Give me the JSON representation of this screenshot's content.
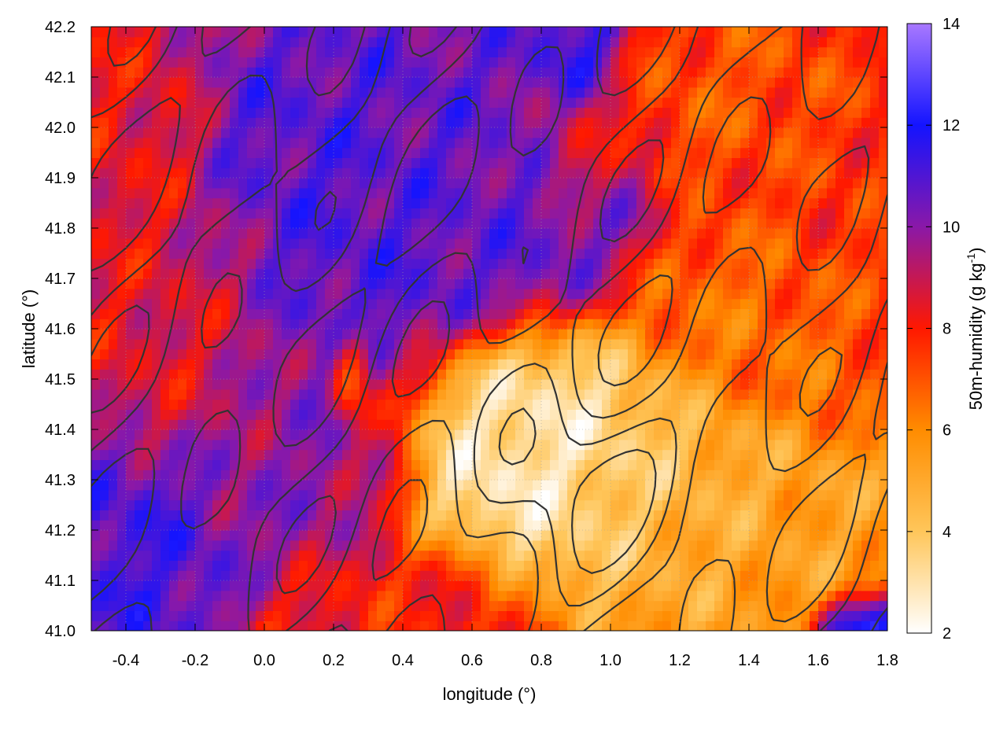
{
  "chart_data": {
    "type": "heatmap",
    "xlabel": "longitude (°)",
    "ylabel": "latitude (°)",
    "colorbar_label_main": "50m-humidity (g kg",
    "colorbar_label_sup": "-1",
    "colorbar_label_end": ")",
    "xlim": [
      -0.5,
      1.8
    ],
    "ylim": [
      41.0,
      42.2
    ],
    "clim": [
      2,
      14
    ],
    "x_ticks": [
      -0.4,
      -0.2,
      0.0,
      0.2,
      0.4,
      0.6,
      0.8,
      1.0,
      1.2,
      1.4,
      1.6,
      1.8
    ],
    "x_tick_labels": [
      "-0.4",
      "-0.2",
      "0.0",
      "0.2",
      "0.4",
      "0.6",
      "0.8",
      "1.0",
      "1.2",
      "1.4",
      "1.6",
      "1.8"
    ],
    "y_ticks": [
      41.0,
      41.1,
      41.2,
      41.3,
      41.4,
      41.5,
      41.6,
      41.7,
      41.8,
      41.9,
      42.0,
      42.1,
      42.2
    ],
    "y_tick_labels": [
      "41.0",
      "41.1",
      "41.2",
      "41.3",
      "41.4",
      "41.5",
      "41.6",
      "41.7",
      "41.8",
      "41.9",
      "42.0",
      "42.1",
      "42.2"
    ],
    "cbar_ticks": [
      2,
      4,
      6,
      8,
      10,
      12,
      14
    ],
    "cbar_tick_labels": [
      "2",
      "4",
      "6",
      "8",
      "10",
      "12",
      "14"
    ],
    "colormap": [
      [
        2,
        "#ffffff"
      ],
      [
        4,
        "#ffc65a"
      ],
      [
        6,
        "#ff8c00"
      ],
      [
        8,
        "#ff1800"
      ],
      [
        10,
        "#8a18a8"
      ],
      [
        12,
        "#1414ff"
      ],
      [
        14,
        "#a878ff"
      ]
    ],
    "grid": true,
    "contour_color": "#333333",
    "features": [
      {
        "lon": 0.85,
        "lat": 41.32,
        "value": 2.4,
        "sx": 0.3,
        "sy": 0.16
      },
      {
        "lon": 0.72,
        "lat": 41.42,
        "value": 3.0,
        "sx": 0.22,
        "sy": 0.13
      },
      {
        "lon": 1.1,
        "lat": 41.28,
        "value": 4.5,
        "sx": 0.25,
        "sy": 0.16
      },
      {
        "lon": 1.35,
        "lat": 41.2,
        "value": 5.0,
        "sx": 0.35,
        "sy": 0.14
      },
      {
        "lon": 1.55,
        "lat": 41.15,
        "value": 5.5,
        "sx": 0.3,
        "sy": 0.12
      },
      {
        "lon": 1.4,
        "lat": 41.6,
        "value": 6.5,
        "sx": 0.25,
        "sy": 0.15
      },
      {
        "lon": 1.65,
        "lat": 41.85,
        "value": 7.5,
        "sx": 0.2,
        "sy": 0.18
      },
      {
        "lon": 1.3,
        "lat": 42.05,
        "value": 7.0,
        "sx": 0.25,
        "sy": 0.12
      },
      {
        "lon": 0.25,
        "lat": 41.5,
        "value": 5.5,
        "sx": 0.04,
        "sy": 0.08
      },
      {
        "lon": 0.45,
        "lat": 41.05,
        "value": 8.0,
        "sx": 0.25,
        "sy": 0.1
      },
      {
        "lon": -0.3,
        "lat": 41.6,
        "value": 8.5,
        "sx": 0.25,
        "sy": 0.2
      },
      {
        "lon": -0.4,
        "lat": 41.95,
        "value": 8.3,
        "sx": 0.15,
        "sy": 0.15
      },
      {
        "lon": 0.3,
        "lat": 41.8,
        "value": 11.0,
        "sx": 0.35,
        "sy": 0.25
      },
      {
        "lon": 0.65,
        "lat": 41.9,
        "value": 10.5,
        "sx": 0.3,
        "sy": 0.2
      },
      {
        "lon": 0.9,
        "lat": 42.15,
        "value": 11.5,
        "sx": 0.1,
        "sy": 0.08
      },
      {
        "lon": 0.9,
        "lat": 41.95,
        "value": 8.0,
        "sx": 0.1,
        "sy": 0.08
      },
      {
        "lon": -0.4,
        "lat": 41.2,
        "value": 11.2,
        "sx": 0.2,
        "sy": 0.15
      },
      {
        "lon": 0.1,
        "lat": 41.35,
        "value": 10.0,
        "sx": 0.25,
        "sy": 0.15
      },
      {
        "lon": 1.75,
        "lat": 41.02,
        "value": 13.5,
        "sx": 0.12,
        "sy": 0.05
      }
    ]
  }
}
